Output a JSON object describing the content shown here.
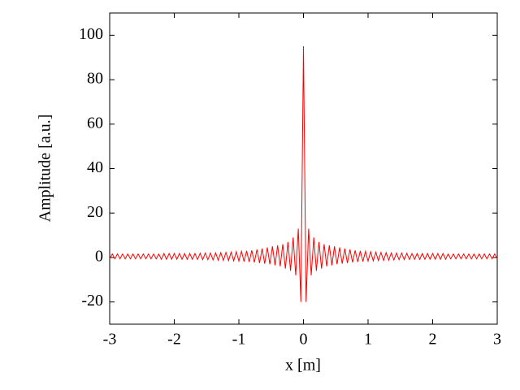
{
  "chart_data": {
    "type": "line",
    "xlabel": "x [m]",
    "ylabel": "Amplitude [a.u.]",
    "xlim": [
      -3,
      3
    ],
    "ylim": [
      -30,
      110
    ],
    "xticks": [
      -3,
      -2,
      -1,
      0,
      1,
      2,
      3
    ],
    "yticks": [
      -20,
      0,
      20,
      40,
      60,
      80,
      100
    ],
    "series": [
      {
        "color": "#ff0000",
        "x": [
          -3,
          -2.96,
          -2.92,
          -2.88,
          -2.84,
          -2.8,
          -2.76,
          -2.72,
          -2.68,
          -2.64,
          -2.6,
          -2.56,
          -2.52,
          -2.48,
          -2.44,
          -2.4,
          -2.36,
          -2.32,
          -2.28,
          -2.24,
          -2.2,
          -2.16,
          -2.12,
          -2.08,
          -2.04,
          -2,
          -1.96,
          -1.92,
          -1.88,
          -1.84,
          -1.8,
          -1.76,
          -1.72,
          -1.68,
          -1.64,
          -1.6,
          -1.56,
          -1.52,
          -1.48,
          -1.44,
          -1.4,
          -1.36,
          -1.32,
          -1.28,
          -1.24,
          -1.2,
          -1.16,
          -1.12,
          -1.08,
          -1.04,
          -1,
          -0.96,
          -0.92,
          -0.88,
          -0.84,
          -0.8,
          -0.76,
          -0.72,
          -0.68,
          -0.64,
          -0.6,
          -0.56,
          -0.52,
          -0.48,
          -0.44,
          -0.4,
          -0.36,
          -0.32,
          -0.28,
          -0.24,
          -0.2,
          -0.16,
          -0.12,
          -0.08,
          -0.04,
          0,
          0.04,
          0.08,
          0.12,
          0.16,
          0.2,
          0.24,
          0.28,
          0.32,
          0.36,
          0.4,
          0.44,
          0.48,
          0.52,
          0.56,
          0.6,
          0.64,
          0.68,
          0.72,
          0.76,
          0.8,
          0.84,
          0.88,
          0.92,
          0.96,
          1,
          1.04,
          1.08,
          1.12,
          1.16,
          1.2,
          1.24,
          1.28,
          1.32,
          1.36,
          1.4,
          1.44,
          1.48,
          1.52,
          1.56,
          1.6,
          1.64,
          1.68,
          1.72,
          1.76,
          1.8,
          1.84,
          1.88,
          1.92,
          1.96,
          2,
          2.04,
          2.08,
          2.12,
          2.16,
          2.2,
          2.24,
          2.28,
          2.32,
          2.36,
          2.4,
          2.44,
          2.48,
          2.52,
          2.56,
          2.6,
          2.64,
          2.68,
          2.72,
          2.76,
          2.8,
          2.84,
          2.88,
          2.92,
          2.96,
          3
        ],
        "values": [
          -0.6,
          1.6,
          -0.6,
          1.6,
          -0.6,
          1.6,
          -0.6,
          1.6,
          -0.6,
          1.6,
          -0.6,
          1.6,
          -0.6,
          1.6,
          -0.6,
          1.6,
          -0.6,
          1.6,
          -0.6,
          1.6,
          -0.8,
          1.8,
          -0.8,
          1.8,
          -0.8,
          1.8,
          -0.8,
          1.8,
          -0.8,
          1.8,
          -0.8,
          1.8,
          -0.8,
          1.8,
          -0.9,
          1.9,
          -1,
          2,
          -1,
          2,
          -1.1,
          2.1,
          -1.2,
          2.2,
          -1.3,
          2.3,
          -1.4,
          2.4,
          -1.5,
          2.6,
          -1.6,
          2.8,
          -1.8,
          3,
          -2,
          3.2,
          -2.2,
          3.6,
          -2.5,
          4,
          -2.8,
          4.5,
          -3,
          5,
          -3.5,
          5.5,
          -4,
          6,
          -5,
          7,
          -6,
          9,
          -8,
          13,
          -20,
          95,
          -20,
          13,
          -8,
          9,
          -6,
          7,
          -5,
          6,
          -4,
          5.5,
          -3.5,
          5,
          -3,
          4.5,
          -2.8,
          4,
          -2.5,
          3.6,
          -2.2,
          3.2,
          -2,
          3,
          -1.8,
          2.8,
          -1.6,
          2.6,
          -1.5,
          2.4,
          -1.4,
          2.3,
          -1.3,
          2.2,
          -1.2,
          2.1,
          -1.1,
          2,
          -1,
          2,
          -1,
          1.9,
          -0.9,
          1.8,
          -0.8,
          1.8,
          -0.8,
          1.8,
          -0.8,
          1.8,
          -0.8,
          1.8,
          -0.8,
          1.8,
          -0.8,
          1.8,
          -0.8,
          1.6,
          -0.6,
          1.6,
          -0.6,
          1.6,
          -0.6,
          1.6,
          -0.6,
          1.6,
          -0.6,
          1.6,
          -0.6,
          1.6,
          -0.6,
          1.6,
          -0.6,
          1.6,
          -0.6,
          1.6,
          -0.6
        ]
      }
    ]
  }
}
